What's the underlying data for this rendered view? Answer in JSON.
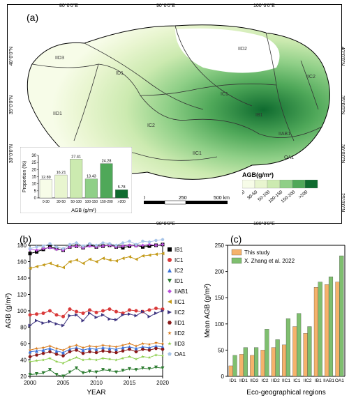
{
  "panel_a": {
    "label": "(a)",
    "lon_ticks": [
      "80°0'0\"E",
      "90°0'0\"E",
      "100°0'0\"E"
    ],
    "lat_ticks": [
      "25°0'0\"N",
      "30°0'0\"N",
      "35°0'0\"N",
      "40°0'0\"N"
    ],
    "regions": [
      "IID3",
      "ID1",
      "IID1",
      "IC2",
      "IIC1",
      "IC1",
      "IID2",
      "IB1",
      "IIAB1",
      "IIC2",
      "OA1"
    ],
    "legend_title": "AGB(g/m²)",
    "legend_bins": [
      "0-30",
      "30-50",
      "50-100",
      "100-150",
      "150-200",
      ">200"
    ],
    "legend_colors": [
      "#f7fce8",
      "#e8f5cf",
      "#cceab0",
      "#8fcf87",
      "#4fa859",
      "#0f6b2f"
    ],
    "scalebar": {
      "values": [
        "0",
        "250",
        "500 km"
      ]
    },
    "inset_bar": {
      "ylabel": "Proportion (%)",
      "xlabel": "AGB (g/m²)",
      "categories": [
        "0-30",
        "30-50",
        "50-100",
        "100-150",
        "150-200",
        ">200"
      ],
      "values": [
        12.89,
        16.21,
        27.41,
        13.43,
        24.28,
        5.78
      ],
      "colors": [
        "#f7fce8",
        "#e8f5cf",
        "#cceab0",
        "#8fcf87",
        "#4fa859",
        "#0f6b2f"
      ],
      "ymax": 30,
      "ytick_step": 5
    }
  },
  "panel_b": {
    "label": "(b)",
    "xlabel": "YEAR",
    "ylabel": "AGB (g/m²)",
    "xticks": [
      2000,
      2005,
      2010,
      2015,
      2020
    ],
    "yticks": [
      20,
      40,
      60,
      80,
      100,
      120,
      140,
      160,
      180
    ],
    "series": [
      {
        "name": "IB1",
        "color": "#000000",
        "marker": "square",
        "y": [
          170,
          172,
          175,
          178,
          176,
          174,
          178,
          179,
          177,
          180,
          178,
          179,
          180,
          178,
          177,
          179,
          180,
          178,
          179,
          180,
          181
        ]
      },
      {
        "name": "IC1",
        "color": "#d93a3a",
        "marker": "circle",
        "y": [
          95,
          96,
          97,
          100,
          95,
          93,
          102,
          99,
          97,
          101,
          98,
          100,
          102,
          99,
          97,
          101,
          100,
          99,
          101,
          103,
          102
        ]
      },
      {
        "name": "IC2",
        "color": "#3a72d9",
        "marker": "triangle",
        "y": [
          50,
          51,
          52,
          54,
          51,
          49,
          53,
          55,
          52,
          54,
          53,
          55,
          54,
          53,
          55,
          56,
          54,
          56,
          55,
          57,
          56
        ]
      },
      {
        "name": "ID1",
        "color": "#2e7d32",
        "marker": "triangle-down",
        "y": [
          22,
          23,
          24,
          28,
          22,
          20,
          25,
          30,
          24,
          26,
          25,
          28,
          27,
          25,
          27,
          29,
          28,
          30,
          29,
          31,
          30
        ]
      },
      {
        "name": "IIAB1",
        "color": "#b94fd9",
        "marker": "diamond",
        "y": [
          175,
          174,
          176,
          177,
          175,
          174,
          178,
          179,
          177,
          179,
          178,
          179,
          180,
          178,
          179,
          180,
          179,
          180,
          181,
          180,
          181
        ]
      },
      {
        "name": "IIC1",
        "color": "#c49b1a",
        "marker": "triangle-left",
        "y": [
          152,
          154,
          156,
          158,
          155,
          153,
          160,
          162,
          158,
          163,
          160,
          164,
          162,
          161,
          164,
          166,
          163,
          167,
          168,
          169,
          170
        ]
      },
      {
        "name": "IIC2",
        "color": "#3e3580",
        "marker": "triangle-right",
        "y": [
          82,
          88,
          85,
          87,
          84,
          82,
          94,
          95,
          88,
          97,
          92,
          95,
          90,
          89,
          95,
          96,
          94,
          99,
          93,
          97,
          100
        ]
      },
      {
        "name": "IID1",
        "color": "#8a1a1a",
        "marker": "hexagon",
        "y": [
          44,
          46,
          48,
          50,
          47,
          45,
          50,
          52,
          48,
          50,
          49,
          51,
          50,
          49,
          51,
          53,
          50,
          53,
          52,
          54,
          53
        ]
      },
      {
        "name": "IID2",
        "color": "#d97a1a",
        "marker": "star",
        "y": [
          52,
          54,
          55,
          57,
          54,
          52,
          56,
          58,
          55,
          57,
          56,
          58,
          57,
          56,
          58,
          60,
          57,
          60,
          59,
          61,
          60
        ]
      },
      {
        "name": "IID3",
        "color": "#8fcf4f",
        "marker": "star5",
        "y": [
          38,
          39,
          40,
          42,
          38,
          36,
          40,
          43,
          40,
          41,
          40,
          42,
          41,
          40,
          42,
          44,
          41,
          44,
          43,
          46,
          45
        ]
      },
      {
        "name": "OA1",
        "color": "#a7c4e8",
        "marker": "pentagon",
        "y": [
          176,
          178,
          179,
          182,
          178,
          176,
          181,
          183,
          179,
          182,
          180,
          183,
          182,
          180,
          183,
          185,
          181,
          185,
          184,
          186,
          187
        ]
      }
    ]
  },
  "panel_c": {
    "label": "(c)",
    "xlabel": "Eco-geographical regions",
    "ylabel": "Mean AGB (g/m²)",
    "yticks": [
      0,
      50,
      100,
      150,
      200,
      250
    ],
    "categories": [
      "ID1",
      "IID1",
      "IID3",
      "IC2",
      "IID2",
      "IIC1",
      "IC1",
      "IIC2",
      "IB1",
      "IIAB1",
      "OA1"
    ],
    "this_study": [
      20,
      42,
      40,
      50,
      55,
      60,
      95,
      82,
      170,
      175,
      180
    ],
    "zhang_2022": [
      40,
      55,
      55,
      90,
      70,
      110,
      120,
      95,
      180,
      190,
      230
    ],
    "legend": [
      {
        "label": "This study",
        "color": "#f5b26b"
      },
      {
        "label": "X. Zhang et al. 2022",
        "color": "#7fbf6f"
      }
    ]
  }
}
